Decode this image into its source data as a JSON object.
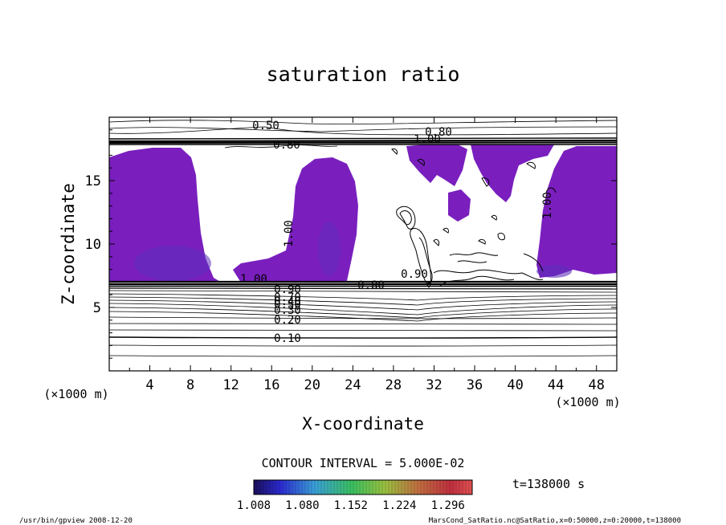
{
  "chart_data": {
    "type": "heatmap",
    "title": "saturation ratio",
    "xlabel": "X-coordinate",
    "ylabel": "Z-coordinate",
    "x_unit_left": "(×1000 m)",
    "x_unit_right": "(×1000 m)",
    "xlim": [
      0,
      50
    ],
    "ylim": [
      0,
      20
    ],
    "x_ticks": [
      4,
      8,
      12,
      16,
      20,
      24,
      28,
      32,
      36,
      40,
      44,
      48
    ],
    "x_tick_labels": [
      "4",
      "8",
      "12",
      "16",
      "20",
      "24",
      "28",
      "32",
      "36",
      "40",
      "44",
      "48"
    ],
    "y_ticks": [
      5,
      10,
      15
    ],
    "y_tick_labels": [
      "5",
      "10",
      "15"
    ],
    "contour_labels": [
      "0.50",
      "0.80",
      "0.80",
      "1.00",
      "1.00",
      "1.00",
      "1.00",
      "0.90",
      "0.90",
      "0.80",
      "0.70",
      "0.50",
      "0.40",
      "0.30",
      "0.20",
      "0.10"
    ],
    "contour_interval_text": "CONTOUR INTERVAL = 5.000E-02",
    "colorbar": {
      "tick_labels": [
        "1.008",
        "1.080",
        "1.152",
        "1.224",
        "1.296"
      ],
      "range": [
        1.008,
        1.332
      ]
    },
    "time_text": "t=138000 s",
    "fill_color": "#7a1fbe",
    "fill_color_dark": "#5d2dbb"
  },
  "footer": {
    "left": "/usr/bin/gpview 2008-12-20",
    "right": "MarsCond_SatRatio.nc@SatRatio,x=0:50000,z=0:20000,t=138000"
  }
}
